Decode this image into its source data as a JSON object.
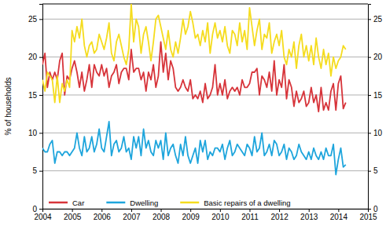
{
  "chart_data": {
    "type": "line",
    "y_label": "% of households",
    "x": [
      2004,
      2004.083,
      2004.167,
      2004.25,
      2004.333,
      2004.417,
      2004.5,
      2004.583,
      2004.667,
      2004.75,
      2004.833,
      2004.917,
      2005,
      2005.083,
      2005.167,
      2005.25,
      2005.333,
      2005.417,
      2005.5,
      2005.583,
      2005.667,
      2005.75,
      2005.833,
      2005.917,
      2006,
      2006.083,
      2006.167,
      2006.25,
      2006.333,
      2006.417,
      2006.5,
      2006.583,
      2006.667,
      2006.75,
      2006.833,
      2006.917,
      2007,
      2007.083,
      2007.167,
      2007.25,
      2007.333,
      2007.417,
      2007.5,
      2007.583,
      2007.667,
      2007.75,
      2007.833,
      2007.917,
      2008,
      2008.083,
      2008.167,
      2008.25,
      2008.333,
      2008.417,
      2008.5,
      2008.583,
      2008.667,
      2008.75,
      2008.833,
      2008.917,
      2009,
      2009.083,
      2009.167,
      2009.25,
      2009.333,
      2009.417,
      2009.5,
      2009.583,
      2009.667,
      2009.75,
      2009.833,
      2009.917,
      2010,
      2010.083,
      2010.167,
      2010.25,
      2010.333,
      2010.417,
      2010.5,
      2010.583,
      2010.667,
      2010.75,
      2010.833,
      2010.917,
      2011,
      2011.083,
      2011.167,
      2011.25,
      2011.333,
      2011.417,
      2011.5,
      2011.583,
      2011.667,
      2011.75,
      2011.833,
      2011.917,
      2012,
      2012.083,
      2012.167,
      2012.25,
      2012.333,
      2012.417,
      2012.5,
      2012.583,
      2012.667,
      2012.75,
      2012.833,
      2012.917,
      2013,
      2013.083,
      2013.167,
      2013.25,
      2013.333,
      2013.417,
      2013.5,
      2013.583,
      2013.667,
      2013.75,
      2013.833,
      2013.917,
      2014,
      2014.083,
      2014.167,
      2014.25
    ],
    "series": [
      {
        "name": "Car",
        "color": "#d7343a",
        "values": [
          19,
          20.5,
          16,
          18,
          17,
          18,
          17,
          19.5,
          20.5,
          15,
          17.5,
          17,
          18.5,
          19.5,
          18,
          16,
          18,
          15.5,
          17,
          19,
          16,
          19,
          18,
          17.5,
          19,
          17.5,
          18.5,
          16,
          17.5,
          18,
          19,
          16.5,
          18,
          18.5,
          18.5,
          17,
          21,
          18,
          18.5,
          18.5,
          17,
          18,
          15.5,
          18,
          17,
          19,
          16,
          17.5,
          22,
          18,
          20.5,
          17,
          19.5,
          18.5,
          16,
          15.5,
          16,
          17,
          16,
          15.5,
          17,
          14.5,
          15,
          14.5,
          15.5,
          14,
          16.5,
          14.5,
          15,
          16,
          19,
          15,
          16.5,
          15,
          17,
          14.5,
          15.5,
          16,
          15.5,
          16,
          15,
          17,
          16,
          16,
          16.5,
          18,
          18,
          18.5,
          15,
          17.5,
          17,
          16,
          18,
          15.5,
          19.5,
          15,
          17,
          16,
          19,
          14.5,
          17,
          16,
          13.5,
          15.5,
          14,
          14.5,
          15.5,
          13.5,
          14,
          16,
          14,
          15,
          12.8,
          16,
          13,
          14,
          13,
          15.5,
          16.5,
          13,
          16.5,
          17.5,
          13.2,
          14
        ]
      },
      {
        "name": "Dwelling",
        "color": "#1ea5dc",
        "values": [
          8,
          7.5,
          7.5,
          8.5,
          9,
          6,
          7.5,
          7.5,
          7,
          7.5,
          7.5,
          7,
          7.5,
          8,
          10,
          8,
          7,
          9.5,
          7.5,
          8,
          9.5,
          7.5,
          8.5,
          10.5,
          8,
          7.5,
          9.5,
          11.5,
          7,
          8.5,
          9,
          7.5,
          8,
          9.5,
          7.5,
          8,
          6.5,
          9.5,
          8,
          9.5,
          7,
          10.5,
          8,
          9,
          7.5,
          7,
          9,
          8,
          9,
          6.5,
          10,
          7,
          8,
          8.5,
          7,
          6,
          8.5,
          7,
          9.5,
          7,
          6,
          7,
          8,
          6,
          9,
          7.5,
          9,
          6.5,
          7.5,
          7,
          8,
          8,
          7.5,
          8.5,
          6.5,
          8,
          9,
          7,
          7.5,
          8.5,
          8,
          7.5,
          7,
          8.5,
          8,
          7,
          9.5,
          7.5,
          8,
          10,
          7,
          7.5,
          8.5,
          7,
          9,
          8.5,
          7,
          7.5,
          8.5,
          6.5,
          8,
          7.5,
          6.5,
          7,
          8.5,
          7.5,
          7,
          6.5,
          7.5,
          6.5,
          8,
          7,
          6.5,
          7.5,
          6.5,
          8,
          7,
          7,
          8.5,
          4.5,
          6.5,
          8,
          5.5,
          5.8
        ]
      },
      {
        "name": "Basic repairs of a dwelling",
        "color": "#f5dc1e",
        "values": [
          17,
          15.5,
          18,
          17.5,
          17,
          14,
          17.5,
          14,
          16.5,
          15.5,
          17,
          16,
          23.5,
          22,
          24,
          22.5,
          25,
          21.5,
          20,
          21.5,
          22,
          20.5,
          21,
          23,
          22,
          21,
          22.5,
          24.5,
          20.5,
          19.5,
          22,
          23,
          21.5,
          20,
          19,
          21,
          27,
          22,
          25,
          24,
          20.5,
          23,
          24,
          22,
          19.5,
          22,
          25,
          25.5,
          24,
          22.5,
          21,
          23.5,
          21,
          20,
          22,
          20.5,
          22.5,
          25,
          23,
          24,
          26,
          24.5,
          22.5,
          23,
          21.5,
          23.5,
          22,
          24.5,
          20.5,
          23,
          24.5,
          22.5,
          23.5,
          22,
          24,
          21.5,
          20.5,
          23.5,
          23,
          21.5,
          24.5,
          22,
          23.5,
          21,
          26.5,
          24,
          21.5,
          23.5,
          25,
          21,
          23,
          22.5,
          24.5,
          20.5,
          22,
          23,
          21.5,
          23.5,
          20,
          19,
          21,
          20,
          22,
          18.5,
          21.5,
          23,
          20,
          21.5,
          19.5,
          21.5,
          19,
          22.5,
          20,
          18.5,
          21,
          19,
          20.5,
          17.5,
          20,
          18.5,
          19.5,
          20,
          21.5,
          21
        ]
      }
    ],
    "xlim": [
      2004,
      2015
    ],
    "xticks": [
      2004,
      2005,
      2006,
      2007,
      2008,
      2009,
      2010,
      2011,
      2012,
      2013,
      2014,
      2015
    ],
    "ylim": [
      0,
      27
    ],
    "yticks": [
      0,
      5,
      10,
      15,
      20,
      25
    ],
    "grid": true,
    "legend": "lower left"
  }
}
